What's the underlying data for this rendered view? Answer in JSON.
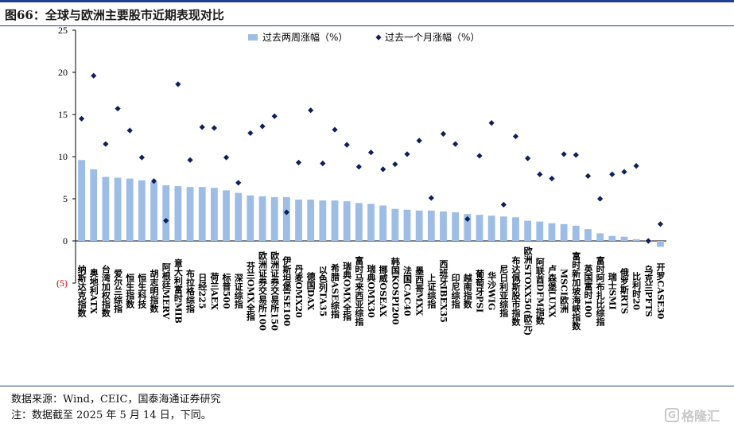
{
  "title": "图66：全球与欧洲主要股市近期表现对比",
  "notes": {
    "source": "数据来源：Wind，CEIC，国泰海通证券研究",
    "note": "注：数据截至 2025 年 5 月 14 日，下同。"
  },
  "watermark": {
    "icon": "G",
    "text": "格隆汇"
  },
  "chart_data": {
    "type": "bar",
    "ylim": [
      -5,
      25
    ],
    "yticks": [
      -5,
      0,
      5,
      10,
      15,
      20,
      25
    ],
    "ytick_labels": [
      "(5)",
      "0",
      "5",
      "10",
      "15",
      "20",
      "25"
    ],
    "negative_tick_color": "#c00000",
    "grid": false,
    "legend_position": "top",
    "categories": [
      "纳斯达克指数",
      "奥地利ATX",
      "台湾加权指数",
      "爱尔兰综指",
      "恒生指数",
      "恒生科技",
      "胡志明指数",
      "阿根廷MERV",
      "意大利富时MIB",
      "布拉格综指",
      "日经225",
      "荷兰AEX",
      "标普500",
      "深证综指",
      "芬兰OMX全指",
      "欧洲证券交易所100",
      "欧洲证券交易所150",
      "伊斯坦堡ISE100",
      "丹麦OMX20",
      "德国DAX",
      "以色列TA35",
      "希腊ASE综指",
      "瑞典OMX全指",
      "富时马来西亚综指",
      "瑞典OMX30",
      "挪威OSEAX",
      "韩国KOSPI200",
      "法国CAC40",
      "墨西哥MXX",
      "上证综指",
      "西班牙IBEX35",
      "印尼综指",
      "越南指数",
      "葡萄牙PSI",
      "华沙WIG",
      "尼日利亚综指",
      "布达佩斯股市指数",
      "欧洲STOXX50(欧元)",
      "阿联酋DFM指数",
      "卢森堡LUXX",
      "MSCI欧洲",
      "富时新加坡海峡指数",
      "英国富时100",
      "富时阿布扎比综指",
      "瑞士SMI",
      "俄罗斯RTS",
      "比利时20",
      "乌克兰PFTS",
      "开罗CASE30"
    ],
    "series": [
      {
        "name": "过去两周涨幅（%）",
        "type": "bar",
        "color": "#9dbde6",
        "values": [
          9.6,
          8.5,
          7.6,
          7.5,
          7.4,
          7.2,
          7.0,
          6.6,
          6.5,
          6.4,
          6.4,
          6.3,
          6.0,
          5.7,
          5.4,
          5.3,
          5.2,
          5.2,
          4.9,
          4.9,
          4.8,
          4.8,
          4.7,
          4.5,
          4.4,
          4.2,
          3.8,
          3.7,
          3.6,
          3.6,
          3.5,
          3.4,
          3.2,
          3.1,
          3.0,
          2.9,
          2.8,
          2.4,
          2.3,
          2.1,
          2.0,
          1.8,
          1.4,
          0.9,
          0.6,
          0.5,
          0.2,
          0.1,
          -0.7
        ]
      },
      {
        "name": "过去一个月涨幅（%）",
        "type": "scatter",
        "color": "#0d1f5c",
        "marker": "diamond",
        "values": [
          14.5,
          19.6,
          11.5,
          15.7,
          13.1,
          9.9,
          7.1,
          2.4,
          18.6,
          9.6,
          13.5,
          13.4,
          9.9,
          6.9,
          12.8,
          13.6,
          14.8,
          3.4,
          9.3,
          15.5,
          9.2,
          13.2,
          11.4,
          8.8,
          10.5,
          8.5,
          9.1,
          10.3,
          11.9,
          5.1,
          12.7,
          11.5,
          2.6,
          10.1,
          14.0,
          4.3,
          12.4,
          9.8,
          7.9,
          7.4,
          10.3,
          10.2,
          7.7,
          5.0,
          7.9,
          8.2,
          8.9,
          0.0,
          2.0
        ]
      }
    ]
  }
}
